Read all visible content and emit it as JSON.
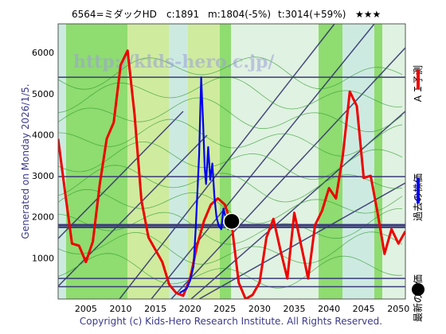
{
  "header": {
    "code_name": "6564=ミダックHD",
    "current": "c:1891",
    "ma": "m:1804(-5%)",
    "target": "t:3014(+59%)",
    "stars": "★★★"
  },
  "side_label": "Generated on Monday 2026/1/5.",
  "footer": "Copyright (c) Kids-Hero Research Institute. All Rights Reserved.",
  "watermark": "http://kids-hero.c.jp/",
  "legend": [
    {
      "label": "ＡＩ予測",
      "color": "#ee0000",
      "marker": "line"
    },
    {
      "label": "過去の株価",
      "color": "#0000ee",
      "marker": "line"
    },
    {
      "label": "最新の株価",
      "color": "#000000",
      "marker": "dot"
    }
  ],
  "colors": {
    "background_green": "#8fdc70",
    "light_band": "#f4f4b8",
    "pale_band": "#d8ecf4",
    "grid": "#3a3a7a",
    "forecast": "#ee0000",
    "history": "#0000ee"
  },
  "chart_data": {
    "type": "line",
    "title": "6564=ミダックHD",
    "xlim": [
      2001,
      2051
    ],
    "ylim": [
      0,
      6700
    ],
    "x_ticks": [
      2005,
      2010,
      2015,
      2020,
      2025,
      2030,
      2035,
      2040,
      2045,
      2050
    ],
    "y_ticks": [
      1000,
      2000,
      3000,
      4000,
      5000,
      6000
    ],
    "horizontal_lines": [
      5400,
      2980,
      1804,
      1750,
      500,
      300
    ],
    "latest_point": {
      "x": 2026.0,
      "y": 1891
    },
    "series": [
      {
        "name": "ＡＩ予測",
        "color": "#ee0000",
        "x": [
          2001.0,
          2002.0,
          2003.0,
          2004.0,
          2005.0,
          2006.0,
          2007.0,
          2008.0,
          2009.0,
          2010.0,
          2011.0,
          2012.0,
          2013.0,
          2014.0,
          2015.0,
          2016.0,
          2017.0,
          2018.0,
          2019.0,
          2020.0,
          2021.0,
          2022.0,
          2023.0,
          2024.0,
          2025.0,
          2026.0,
          2027.0,
          2028.0,
          2029.0,
          2030.0,
          2031.0,
          2032.0,
          2033.0,
          2034.0,
          2035.0,
          2036.0,
          2037.0,
          2038.0,
          2039.0,
          2040.0,
          2041.0,
          2042.0,
          2043.0,
          2044.0,
          2045.0,
          2046.0,
          2047.0,
          2048.0,
          2049.0,
          2050.0,
          2051.0
        ],
        "y": [
          3900,
          2600,
          1350,
          1300,
          900,
          1400,
          2800,
          3900,
          4300,
          5700,
          6050,
          4500,
          2400,
          1500,
          1200,
          900,
          350,
          150,
          80,
          500,
          1300,
          1900,
          2300,
          2450,
          2300,
          1800,
          400,
          0,
          100,
          400,
          1500,
          1950,
          1200,
          500,
          2100,
          1300,
          500,
          1800,
          2150,
          2700,
          2450,
          3500,
          5050,
          4700,
          2950,
          3000,
          2100,
          1100,
          1700,
          1350,
          1650
        ]
      },
      {
        "name": "過去の株価",
        "color": "#0000ee",
        "x": [
          2018.5,
          2019.0,
          2019.5,
          2020.0,
          2020.5,
          2020.8,
          2021.0,
          2021.3,
          2021.6,
          2021.9,
          2022.1,
          2022.3,
          2022.6,
          2022.9,
          2023.2,
          2023.5,
          2023.8,
          2024.1,
          2024.5,
          2024.8,
          2025.1,
          2025.5,
          2025.8,
          2026.0
        ],
        "y": [
          150,
          200,
          250,
          450,
          800,
          1700,
          2400,
          3500,
          5400,
          4200,
          3200,
          2800,
          3700,
          2900,
          3300,
          2500,
          2000,
          1800,
          1700,
          2200,
          2000,
          1700,
          1850,
          1891
        ]
      }
    ]
  }
}
